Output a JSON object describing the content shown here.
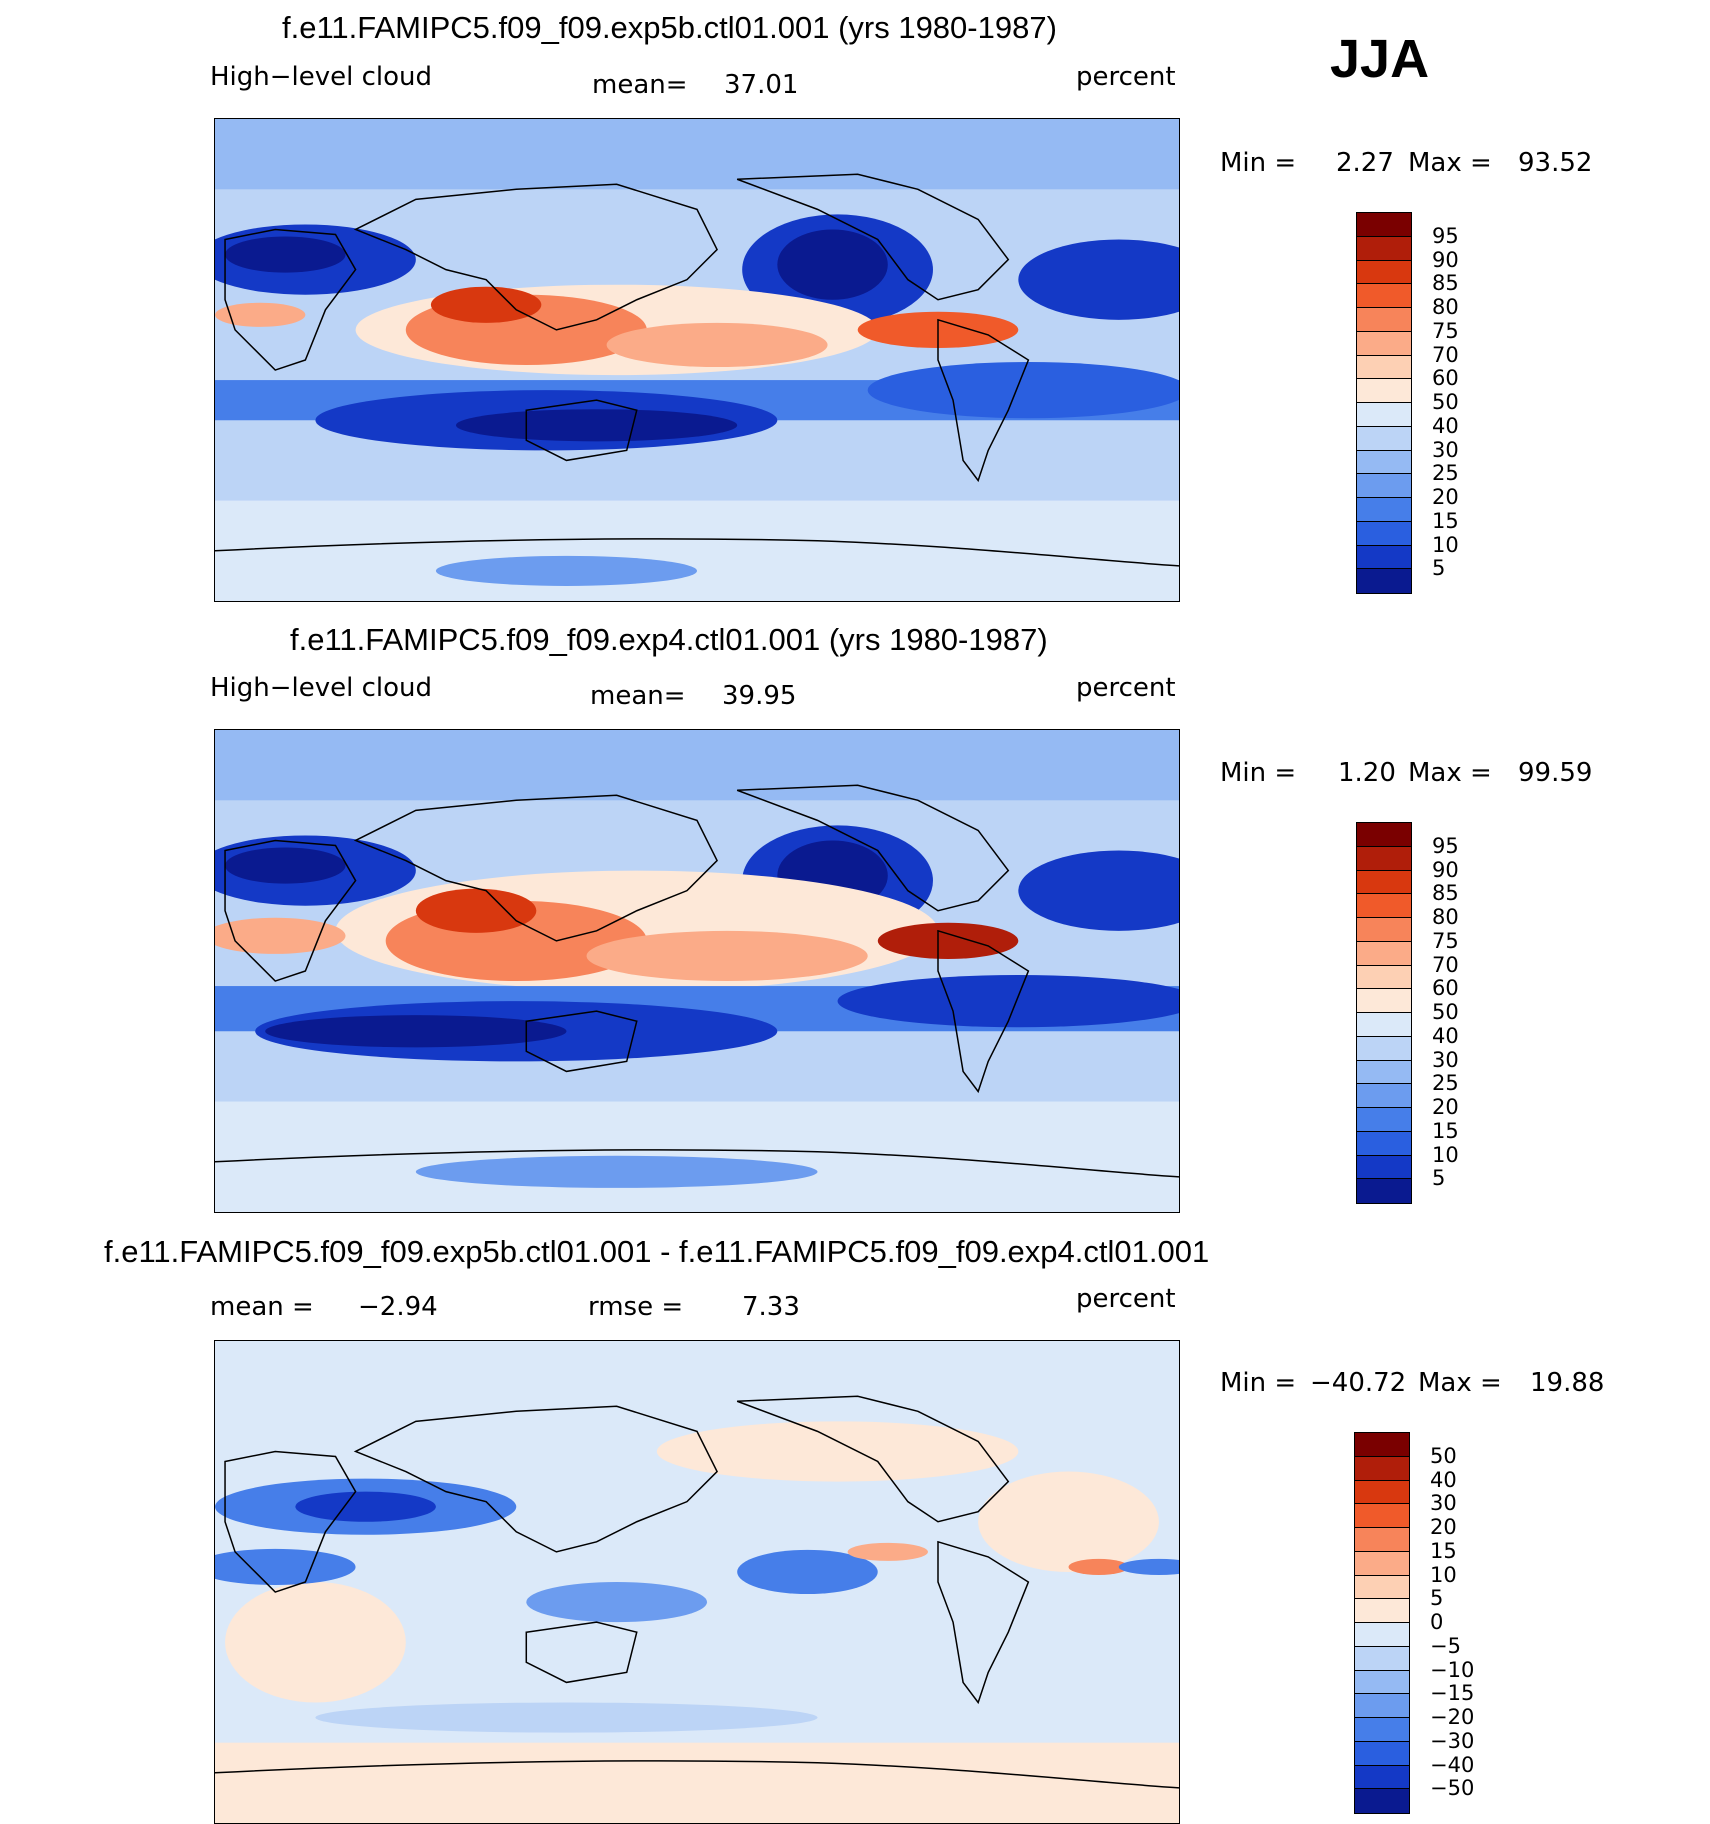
{
  "season": "JJA",
  "chart_data": [
    {
      "type": "heatmap",
      "title": "f.e11.FAMIPC5.f09_f09.exp5b.ctl01.001 (yrs 1980-1987)",
      "variable": "High−level cloud",
      "mean_label": "mean=",
      "mean_value": "37.01",
      "units": "percent",
      "min_label": "Min =",
      "min_value": "2.27",
      "max_label": "Max =",
      "max_value": "93.52",
      "colorbar_levels": [
        "95",
        "90",
        "85",
        "80",
        "75",
        "70",
        "60",
        "50",
        "40",
        "30",
        "25",
        "20",
        "15",
        "10",
        "5"
      ],
      "mean": 37.01,
      "min": 2.27,
      "max": 93.52
    },
    {
      "type": "heatmap",
      "title": "f.e11.FAMIPC5.f09_f09.exp4.ctl01.001 (yrs 1980-1987)",
      "variable": "High−level cloud",
      "mean_label": "mean=",
      "mean_value": "39.95",
      "units": "percent",
      "min_label": "Min =",
      "min_value": "1.20",
      "max_label": "Max =",
      "max_value": "99.59",
      "colorbar_levels": [
        "95",
        "90",
        "85",
        "80",
        "75",
        "70",
        "60",
        "50",
        "40",
        "30",
        "25",
        "20",
        "15",
        "10",
        "5"
      ],
      "mean": 39.95,
      "min": 1.2,
      "max": 99.59
    },
    {
      "type": "heatmap",
      "title": "f.e11.FAMIPC5.f09_f09.exp5b.ctl01.001 - f.e11.FAMIPC5.f09_f09.exp4.ctl01.001",
      "mean_label": "mean =",
      "mean_value": "−2.94",
      "rmse_label": "rmse =",
      "rmse_value": "7.33",
      "units": "percent",
      "min_label": "Min =",
      "min_value": "−40.72",
      "max_label": "Max =",
      "max_value": "19.88",
      "colorbar_levels": [
        "50",
        "40",
        "30",
        "20",
        "15",
        "10",
        "5",
        "0",
        "−5",
        "−10",
        "−15",
        "−20",
        "−30",
        "−40",
        "−50"
      ],
      "mean": -2.94,
      "rmse": 7.33,
      "min": -40.72,
      "max": 19.88
    }
  ],
  "colors": {
    "cloud_scale": [
      "#7a0000",
      "#b01e0a",
      "#d8380f",
      "#f05a2a",
      "#f7845a",
      "#fbab88",
      "#fdd0b4",
      "#fde8d8",
      "#dbe9f9",
      "#bcd4f6",
      "#95baf3",
      "#6c9cef",
      "#467ee9",
      "#2a5fe0",
      "#1439c6",
      "#0a1a90"
    ],
    "diff_scale": [
      "#7a0000",
      "#b01e0a",
      "#d8380f",
      "#f05a2a",
      "#f7845a",
      "#fbab88",
      "#fdd0b4",
      "#fde8d8",
      "#dbe9f9",
      "#bcd4f6",
      "#95baf3",
      "#6c9cef",
      "#467ee9",
      "#2a5fe0",
      "#1439c6",
      "#0a1a90"
    ]
  }
}
